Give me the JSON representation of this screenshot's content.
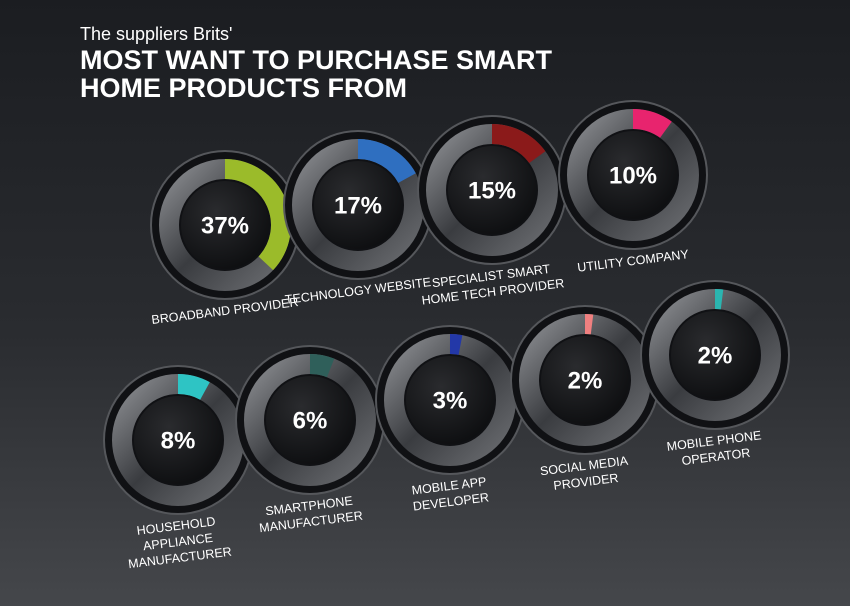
{
  "chart_data": {
    "type": "donut",
    "subtitle": "The suppliers Brits'",
    "title": "MOST WANT TO PURCHASE SMART HOME PRODUCTS FROM",
    "categories": [
      "BROADBAND PROVIDER",
      "TECHNOLOGY WEBSITE",
      "SPECIALIST SMART HOME TECH PROVIDER",
      "UTILITY COMPANY",
      "HOUSEHOLD APPLIANCE MANUFACTURER",
      "SMARTPHONE MANUFACTURER",
      "MOBILE APP DEVELOPER",
      "SOCIAL MEDIA PROVIDER",
      "MOBILE PHONE OPERATOR"
    ],
    "values": [
      37,
      17,
      15,
      10,
      8,
      6,
      3,
      2,
      2
    ],
    "value_labels": [
      "37%",
      "17%",
      "15%",
      "10%",
      "8%",
      "6%",
      "3%",
      "2%",
      "2%"
    ],
    "colors": [
      "#9bbb2a",
      "#2f6fc0",
      "#8b1a1a",
      "#e8246e",
      "#2ec4c4",
      "#2f5f5a",
      "#2338a8",
      "#f08080",
      "#2bb5b0"
    ]
  }
}
